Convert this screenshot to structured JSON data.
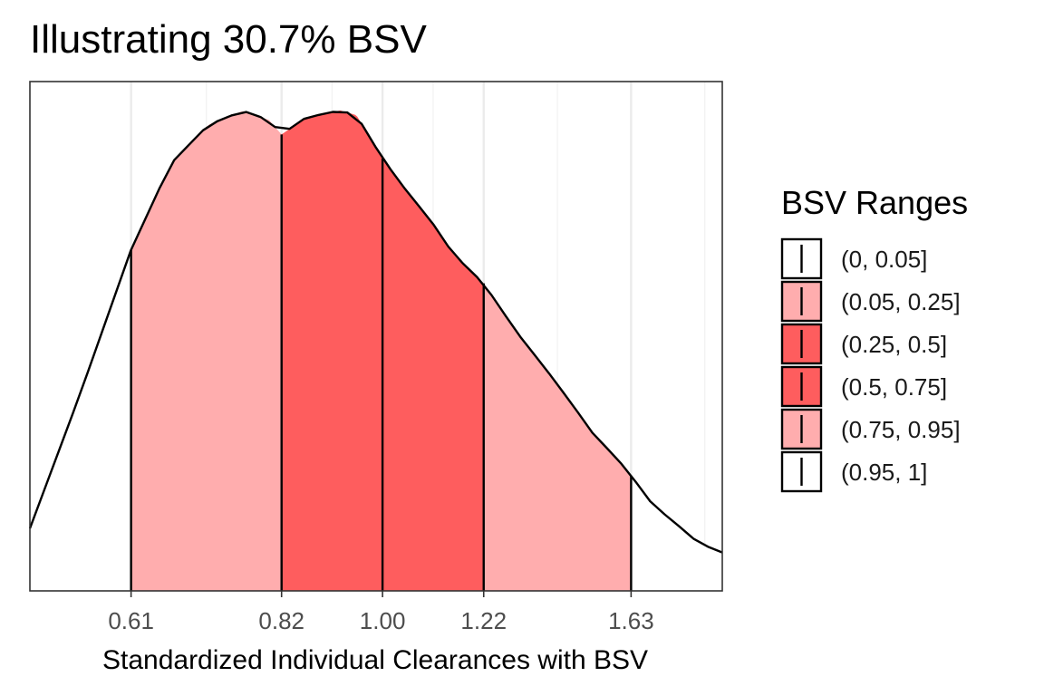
{
  "chart_data": {
    "type": "area",
    "title": "Illustrating 30.7% BSV",
    "xlabel": "Standardized Individual Clearances with BSV",
    "ylabel": "",
    "xlim": [
      0.5,
      1.95
    ],
    "log_x": true,
    "y_axis_ticks_visible": false,
    "grid": {
      "vertical": true,
      "horizontal": false
    },
    "x_ticks": [
      0.61,
      0.82,
      1.0,
      1.22,
      1.63
    ],
    "x_tick_labels": [
      "0.61",
      "0.82",
      "1.00",
      "1.22",
      "1.63"
    ],
    "density": {
      "x": [
        0.5,
        0.55,
        0.61,
        0.66,
        0.71,
        0.76,
        0.8,
        0.82,
        0.86,
        0.9,
        0.92,
        0.95,
        1.0,
        1.05,
        1.1,
        1.15,
        1.22,
        1.3,
        1.38,
        1.45,
        1.52,
        1.58,
        1.63,
        1.7,
        1.78,
        1.86,
        1.95
      ],
      "y": [
        0.13,
        0.4,
        0.71,
        0.89,
        0.97,
        0.999,
        0.98,
        0.95,
        0.985,
        0.995,
        1.0,
        0.99,
        0.9,
        0.83,
        0.77,
        0.7,
        0.64,
        0.54,
        0.46,
        0.39,
        0.32,
        0.28,
        0.24,
        0.18,
        0.14,
        0.1,
        0.08
      ],
      "ymax": 1.06
    },
    "band_edges": [
      0.61,
      0.82,
      1.0,
      1.22,
      1.63
    ],
    "bands": [
      {
        "range": [
          0.5,
          0.61
        ],
        "legend": "(0, 0.05]",
        "fill": "#ffffff"
      },
      {
        "range": [
          0.61,
          0.82
        ],
        "legend": "(0.05, 0.25]",
        "fill": "#ffadae"
      },
      {
        "range": [
          0.82,
          1.0
        ],
        "legend": "(0.25, 0.5]",
        "fill": "#fe5d5e"
      },
      {
        "range": [
          1.0,
          1.22
        ],
        "legend": "(0.5, 0.75]",
        "fill": "#fe5d5e"
      },
      {
        "range": [
          1.22,
          1.63
        ],
        "legend": "(0.75, 0.95]",
        "fill": "#ffadae"
      },
      {
        "range": [
          1.63,
          1.95
        ],
        "legend": "(0.95, 1]",
        "fill": "#ffffff"
      }
    ],
    "legend": {
      "title": "BSV Ranges",
      "position": "right",
      "items": [
        {
          "label": "(0, 0.05]",
          "color": "#ffffff"
        },
        {
          "label": "(0.05, 0.25]",
          "color": "#ffadae"
        },
        {
          "label": "(0.25, 0.5]",
          "color": "#fe5d5e"
        },
        {
          "label": "(0.5, 0.75]",
          "color": "#fe5d5e"
        },
        {
          "label": "(0.75, 0.95]",
          "color": "#ffadae"
        },
        {
          "label": "(0.95, 1]",
          "color": "#ffffff"
        }
      ]
    }
  }
}
